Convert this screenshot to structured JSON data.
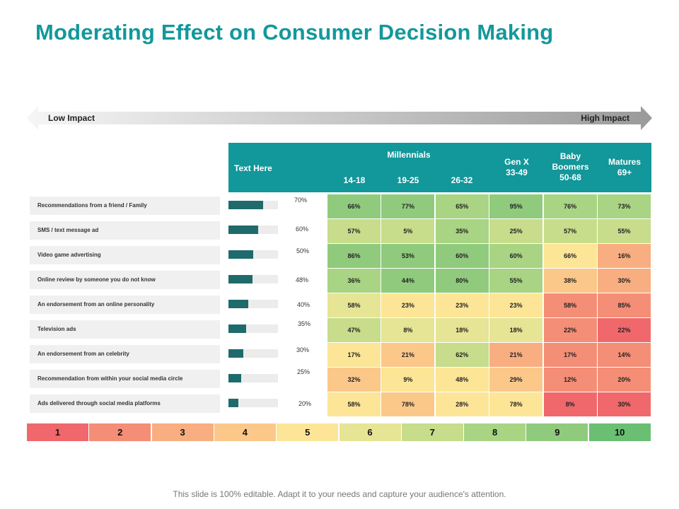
{
  "title": "Moderating Effect on Consumer Decision Making",
  "impact_scale": {
    "low": "Low Impact",
    "high": "High Impact"
  },
  "header": {
    "text_here": "Text Here",
    "millennials": "Millennials",
    "ages": [
      "14-18",
      "19-25",
      "26-32"
    ],
    "genx": [
      "Gen X",
      "33-49"
    ],
    "boomers": [
      "Baby",
      "Boomers",
      "50-68"
    ],
    "matures": [
      "Matures",
      "69+"
    ]
  },
  "chart_data": {
    "type": "heatmap",
    "title": "Moderating Effect on Consumer Decision Making",
    "columns": [
      "14-18",
      "19-25",
      "26-32",
      "Gen X 33-49",
      "Baby Boomers 50-68",
      "Matures 69+"
    ],
    "column_groups": [
      {
        "name": "Millennials",
        "columns": [
          "14-18",
          "19-25",
          "26-32"
        ]
      }
    ],
    "rows": [
      "Recommendations from a friend / Family",
      "SMS / text message ad",
      "Video game advertising",
      "Online review by someone you do not know",
      "An endorsement from an online personality",
      "Television ads",
      "An endorsement from an celebrity",
      "Recommendation from within your social media circle",
      "Ads delivered through social media platforms"
    ],
    "overall": [
      70,
      60,
      50,
      48,
      40,
      35,
      30,
      25,
      20
    ],
    "overall_labels": [
      "70%",
      "60%",
      "50%",
      "48%",
      "40%",
      "35%",
      "30%",
      "25%",
      "20%"
    ],
    "values": [
      [
        "66%",
        "77%",
        "65%",
        "95%",
        "76%",
        "73%"
      ],
      [
        "57%",
        "5%",
        "35%",
        "25%",
        "57%",
        "55%"
      ],
      [
        "86%",
        "53%",
        "60%",
        "60%",
        "66%",
        "16%"
      ],
      [
        "36%",
        "44%",
        "80%",
        "55%",
        "38%",
        "30%"
      ],
      [
        "58%",
        "23%",
        "23%",
        "23%",
        "58%",
        "85%"
      ],
      [
        "47%",
        "8%",
        "18%",
        "18%",
        "22%",
        "22%"
      ],
      [
        "17%",
        "21%",
        "62%",
        "21%",
        "17%",
        "14%"
      ],
      [
        "32%",
        "9%",
        "48%",
        "29%",
        "12%",
        "20%"
      ],
      [
        "58%",
        "78%",
        "28%",
        "78%",
        "8%",
        "30%"
      ]
    ],
    "levels": [
      [
        9,
        9,
        8,
        9,
        8,
        8
      ],
      [
        7,
        7,
        8,
        7,
        7,
        7
      ],
      [
        9,
        9,
        9,
        8,
        5,
        3
      ],
      [
        8,
        9,
        9,
        8,
        4,
        3
      ],
      [
        6,
        5,
        5,
        5,
        2,
        2
      ],
      [
        7,
        6,
        6,
        6,
        2,
        1
      ],
      [
        5,
        4,
        7,
        3,
        2,
        2
      ],
      [
        4,
        5,
        5,
        4,
        2,
        2
      ],
      [
        5,
        4,
        5,
        5,
        1,
        1
      ]
    ],
    "legend_scale": [
      "1",
      "2",
      "3",
      "4",
      "5",
      "6",
      "7",
      "8",
      "9",
      "10"
    ],
    "scale_colors": [
      "#f0686c",
      "#f48e76",
      "#f8ae80",
      "#fbc88a",
      "#fce596",
      "#e6e495",
      "#c7dd8b",
      "#a8d483",
      "#90cb7d",
      "#6abf72"
    ]
  },
  "footer": "This slide is 100% editable. Adapt it to your needs and capture your audience's attention."
}
